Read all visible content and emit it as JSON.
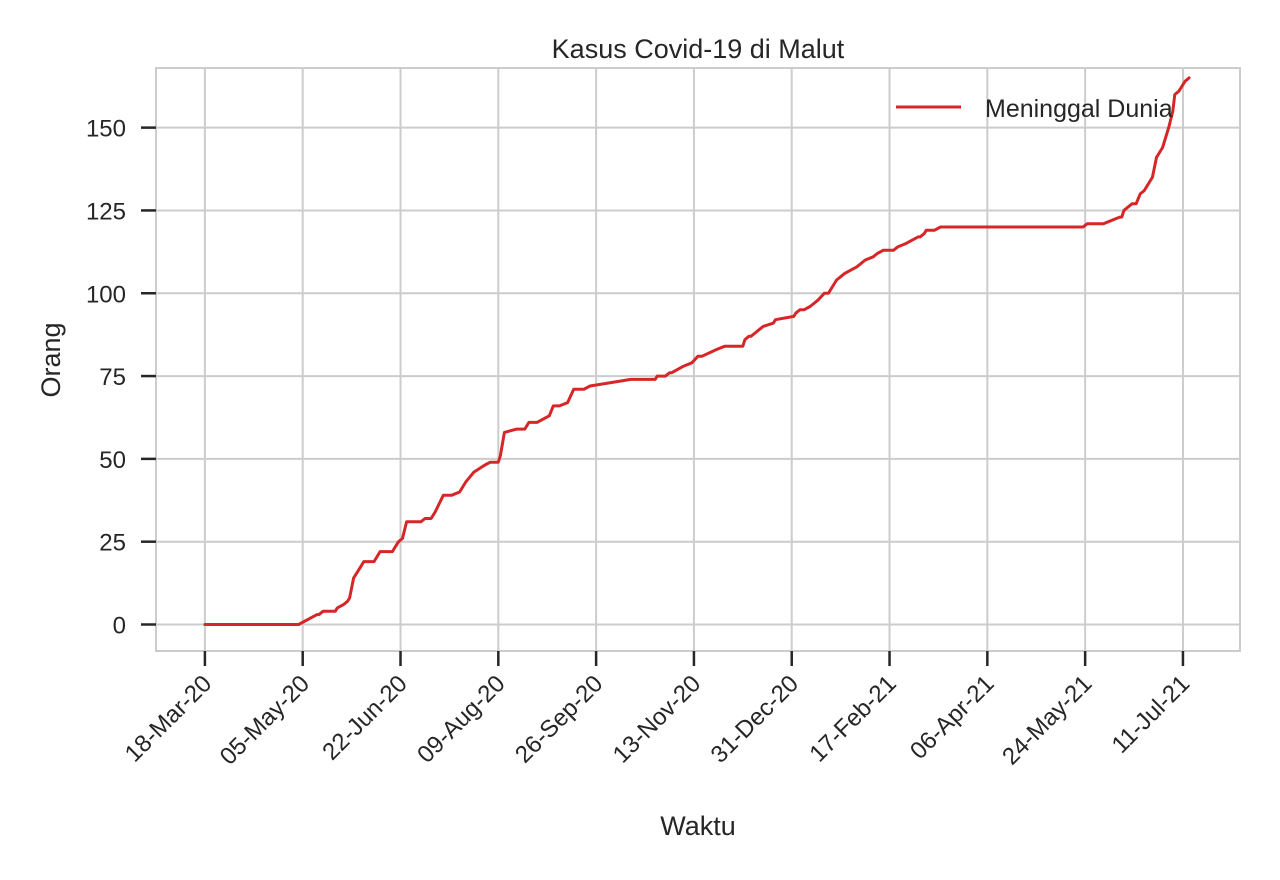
{
  "chart_data": {
    "type": "line",
    "title": "Kasus Covid-19 di Malut",
    "xlabel": "Waktu",
    "ylabel": "Orang",
    "x_start": "2020-03-18",
    "x_tick_labels": [
      "18-Mar-20",
      "05-May-20",
      "22-Jun-20",
      "09-Aug-20",
      "26-Sep-20",
      "13-Nov-20",
      "31-Dec-20",
      "17-Feb-21",
      "06-Apr-21",
      "24-May-21",
      "11-Jul-21"
    ],
    "x_tick_dates": [
      "2020-03-18",
      "2020-05-05",
      "2020-06-22",
      "2020-08-09",
      "2020-09-26",
      "2020-11-13",
      "2020-12-31",
      "2021-02-17",
      "2021-04-06",
      "2021-05-24",
      "2021-07-11"
    ],
    "xlim": [
      "2020-02-23",
      "2021-07-39"
    ],
    "ylim": [
      -8,
      168
    ],
    "y_ticks": [
      0,
      25,
      50,
      75,
      100,
      125,
      150
    ],
    "grid": true,
    "legend_position": "top-right",
    "series": [
      {
        "name": "Meninggal Dunia",
        "color": "#d62728",
        "x": [
          "2020-03-18",
          "2020-05-03",
          "2020-05-12",
          "2020-05-13",
          "2020-05-15",
          "2020-05-21",
          "2020-05-22",
          "2020-05-25",
          "2020-05-27",
          "2020-05-28",
          "2020-05-30",
          "2020-06-02",
          "2020-06-04",
          "2020-06-09",
          "2020-06-12",
          "2020-06-18",
          "2020-06-19",
          "2020-06-21",
          "2020-06-23",
          "2020-06-25",
          "2020-07-02",
          "2020-07-04",
          "2020-07-07",
          "2020-07-09",
          "2020-07-13",
          "2020-07-15",
          "2020-07-17",
          "2020-07-21",
          "2020-07-24",
          "2020-07-28",
          "2020-08-02",
          "2020-08-05",
          "2020-08-09",
          "2020-08-10",
          "2020-08-12",
          "2020-08-18",
          "2020-08-22",
          "2020-08-24",
          "2020-08-28",
          "2020-09-03",
          "2020-09-05",
          "2020-09-08",
          "2020-09-12",
          "2020-09-15",
          "2020-09-20",
          "2020-09-23",
          "2020-10-13",
          "2020-10-14",
          "2020-10-25",
          "2020-10-26",
          "2020-10-30",
          "2020-11-01",
          "2020-11-02",
          "2020-11-05",
          "2020-11-08",
          "2020-11-12",
          "2020-11-15",
          "2020-11-17",
          "2020-11-24",
          "2020-11-28",
          "2020-12-05",
          "2020-12-07",
          "2020-12-08",
          "2020-12-10",
          "2020-12-11",
          "2020-12-13",
          "2020-12-15",
          "2020-12-17",
          "2020-12-22",
          "2020-12-23",
          "2021-01-01",
          "2021-01-02",
          "2021-01-04",
          "2021-01-06",
          "2021-01-09",
          "2021-01-13",
          "2021-01-16",
          "2021-01-18",
          "2021-01-20",
          "2021-01-22",
          "2021-01-26",
          "2021-02-01",
          "2021-02-05",
          "2021-02-09",
          "2021-02-11",
          "2021-02-14",
          "2021-02-17",
          "2021-02-19",
          "2021-02-21",
          "2021-02-25",
          "2021-03-03",
          "2021-03-04",
          "2021-03-06",
          "2021-03-07",
          "2021-03-08",
          "2021-03-11",
          "2021-03-14",
          "2021-03-15",
          "2021-03-17",
          "2021-05-23",
          "2021-05-25",
          "2021-05-28",
          "2021-06-01",
          "2021-06-02",
          "2021-06-10",
          "2021-06-11",
          "2021-06-12",
          "2021-06-16",
          "2021-06-18",
          "2021-06-20",
          "2021-06-22",
          "2021-06-26",
          "2021-06-28",
          "2021-07-01",
          "2021-07-04",
          "2021-07-06",
          "2021-07-07",
          "2021-07-09",
          "2021-07-12",
          "2021-07-14"
        ],
        "y": [
          0,
          0,
          3,
          3,
          4,
          4,
          5,
          6,
          7,
          8,
          14,
          17,
          19,
          19,
          22,
          22,
          23,
          25,
          26,
          31,
          31,
          32,
          32,
          34,
          39,
          39,
          39,
          40,
          43,
          46,
          48,
          49,
          49,
          51,
          58,
          59,
          59,
          61,
          61,
          63,
          66,
          66,
          67,
          71,
          71,
          72,
          74,
          74,
          74,
          75,
          75,
          76,
          76,
          77,
          78,
          79,
          81,
          81,
          83,
          84,
          84,
          84,
          86,
          87,
          87,
          88,
          89,
          90,
          91,
          92,
          93,
          94,
          95,
          95,
          96,
          98,
          100,
          100,
          102,
          104,
          106,
          108,
          110,
          111,
          112,
          113,
          113,
          113,
          114,
          115,
          117,
          117,
          118,
          119,
          119,
          119,
          120,
          120,
          120,
          120,
          121,
          121,
          121,
          121,
          123,
          123,
          125,
          127,
          127,
          130,
          131,
          135,
          141,
          144,
          150,
          155,
          160,
          161,
          164,
          165
        ]
      }
    ]
  }
}
